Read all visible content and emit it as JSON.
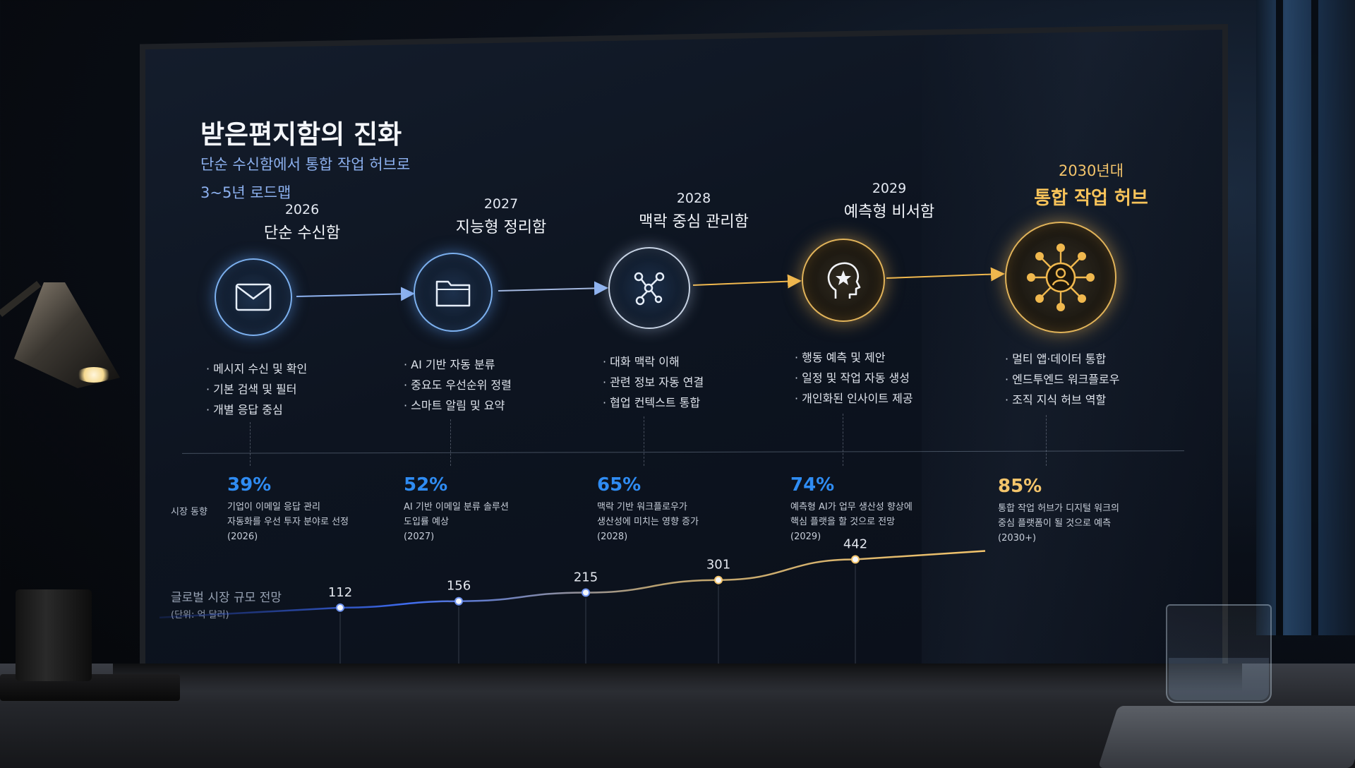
{
  "header": {
    "title": "받은편지함의 진화",
    "subtitle": "단순 수신함에서 통합 작업 허브로",
    "subtitle2": "3~5년 로드맵"
  },
  "stages": [
    {
      "year": "2026",
      "name": "단순 수신함",
      "icon": "envelope-icon",
      "bullets": [
        "메시지 수신 및 확인",
        "기본 검색 및 필터",
        "개별 응답 중심"
      ]
    },
    {
      "year": "2027",
      "name": "지능형 정리함",
      "icon": "folder-icon",
      "bullets": [
        "AI 기반 자동 분류",
        "중요도 우선순위 정렬",
        "스마트 알림 및 요약"
      ]
    },
    {
      "year": "2028",
      "name": "맥락 중심 관리함",
      "icon": "network-icon",
      "bullets": [
        "대화 맥락 이해",
        "관련 정보 자동 연결",
        "협업 컨텍스트 통합"
      ]
    },
    {
      "year": "2029",
      "name": "예측형 비서함",
      "icon": "head-star-icon",
      "bullets": [
        "행동 예측 및 제안",
        "일정 및 작업 자동 생성",
        "개인화된 인사이트 제공"
      ]
    },
    {
      "year": "2030년대",
      "name": "통합 작업 허브",
      "icon": "hub-person-icon",
      "bullets": [
        "멀티 앱·데이터 통합",
        "엔드투엔드 워크플로우",
        "조직 지식 허브 역할"
      ]
    }
  ],
  "market_trend": {
    "label": "시장 동향",
    "items": [
      {
        "pct": "39%",
        "lines": [
          "기업이 이메일 응답 관리",
          "자동화를 우선 투자 분야로 선정",
          "(2026)"
        ]
      },
      {
        "pct": "52%",
        "lines": [
          "AI 기반 이메일 분류 솔루션",
          "도입률 예상",
          "(2027)"
        ]
      },
      {
        "pct": "65%",
        "lines": [
          "맥락 기반 워크플로우가",
          "생산성에 미치는 영향 증가",
          "(2028)"
        ]
      },
      {
        "pct": "74%",
        "lines": [
          "예측형 AI가 업무 생산성 향상에",
          "핵심 플랫을 할 것으로 전망",
          "(2029)"
        ]
      },
      {
        "pct": "85%",
        "lines": [
          "통합 작업 허브가 디지털 워크의",
          "중심 플랫폼이 될 것으로 예측",
          "(2030+)"
        ]
      }
    ]
  },
  "market_size": {
    "title": "글로벌 시장 규모 전망",
    "unit": "(단위: 억 달러)"
  },
  "chart_data": {
    "type": "line",
    "categories": [
      "2026",
      "2027",
      "2028",
      "2029",
      "2030+"
    ],
    "values": [
      112,
      156,
      215,
      301,
      442
    ],
    "title": "글로벌 시장 규모 전망",
    "ylabel": "(단위: 억 달러)",
    "colors": {
      "start": "#3f6cf0",
      "end": "#f3c46b"
    }
  },
  "colors": {
    "accent_blue": "#2f8cf3",
    "accent_gold": "#f3c46b",
    "subtitle": "#8cb0ee"
  }
}
